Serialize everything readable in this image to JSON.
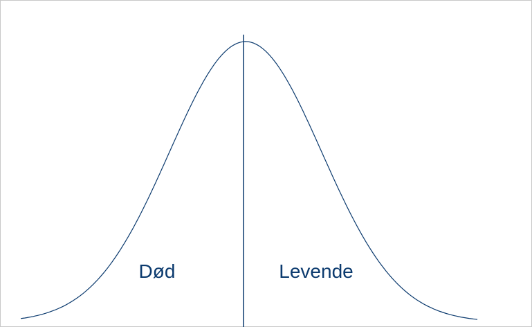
{
  "labels": {
    "left": "Død",
    "right": "Levende"
  }
}
